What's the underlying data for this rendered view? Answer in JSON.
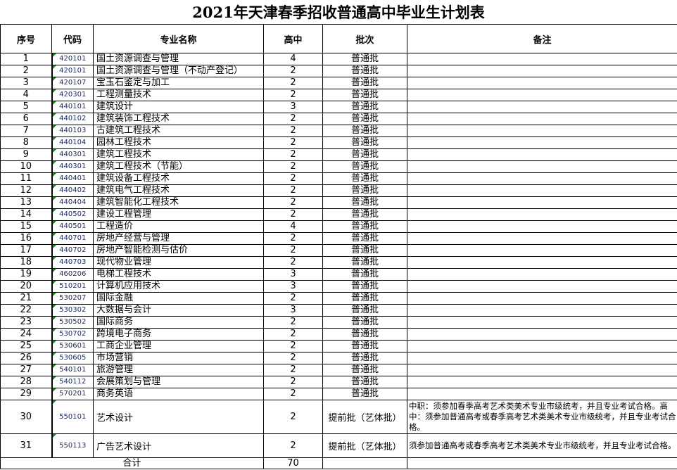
{
  "title": "2021年天津春季招收普通高中毕业生计划表",
  "headers": {
    "seq": "序号",
    "code": "代码",
    "name": "专业名称",
    "quota": "高中",
    "batch": "批次",
    "note": "备注"
  },
  "rows": [
    {
      "seq": "1",
      "code": "420101",
      "name": "国土资源调查与管理",
      "quota": "4",
      "batch": "普通批",
      "note": ""
    },
    {
      "seq": "2",
      "code": "420101",
      "name": "国土资源调查与管理（不动产登记）",
      "quota": "2",
      "batch": "普通批",
      "note": ""
    },
    {
      "seq": "3",
      "code": "420107",
      "name": "宝玉石鉴定与加工",
      "quota": "2",
      "batch": "普通批",
      "note": ""
    },
    {
      "seq": "4",
      "code": "420301",
      "name": "工程测量技术",
      "quota": "2",
      "batch": "普通批",
      "note": ""
    },
    {
      "seq": "5",
      "code": "440101",
      "name": "建筑设计",
      "quota": "3",
      "batch": "普通批",
      "note": ""
    },
    {
      "seq": "6",
      "code": "440102",
      "name": "建筑装饰工程技术",
      "quota": "2",
      "batch": "普通批",
      "note": ""
    },
    {
      "seq": "7",
      "code": "440103",
      "name": "古建筑工程技术",
      "quota": "2",
      "batch": "普通批",
      "note": ""
    },
    {
      "seq": "8",
      "code": "440104",
      "name": "园林工程技术",
      "quota": "2",
      "batch": "普通批",
      "note": ""
    },
    {
      "seq": "9",
      "code": "440301",
      "name": "建筑工程技术",
      "quota": "2",
      "batch": "普通批",
      "note": ""
    },
    {
      "seq": "10",
      "code": "440301",
      "name": "建筑工程技术（节能）",
      "quota": "2",
      "batch": "普通批",
      "note": ""
    },
    {
      "seq": "11",
      "code": "440401",
      "name": "建筑设备工程技术",
      "quota": "2",
      "batch": "普通批",
      "note": ""
    },
    {
      "seq": "12",
      "code": "440402",
      "name": "建筑电气工程技术",
      "quota": "2",
      "batch": "普通批",
      "note": ""
    },
    {
      "seq": "13",
      "code": "440404",
      "name": "建筑智能化工程技术",
      "quota": "2",
      "batch": "普通批",
      "note": ""
    },
    {
      "seq": "14",
      "code": "440502",
      "name": "建设工程管理",
      "quota": "2",
      "batch": "普通批",
      "note": ""
    },
    {
      "seq": "15",
      "code": "440501",
      "name": "工程造价",
      "quota": "4",
      "batch": "普通批",
      "note": ""
    },
    {
      "seq": "16",
      "code": "440701",
      "name": "房地产经营与管理",
      "quota": "2",
      "batch": "普通批",
      "note": ""
    },
    {
      "seq": "17",
      "code": "440702",
      "name": "房地产智能检测与估价",
      "quota": "2",
      "batch": "普通批",
      "note": ""
    },
    {
      "seq": "18",
      "code": "440703",
      "name": "现代物业管理",
      "quota": "2",
      "batch": "普通批",
      "note": ""
    },
    {
      "seq": "19",
      "code": "460206",
      "name": "电梯工程技术",
      "quota": "3",
      "batch": "普通批",
      "note": ""
    },
    {
      "seq": "20",
      "code": "510201",
      "name": "计算机应用技术",
      "quota": "3",
      "batch": "普通批",
      "note": ""
    },
    {
      "seq": "21",
      "code": "530207",
      "name": "国际金融",
      "quota": "2",
      "batch": "普通批",
      "note": ""
    },
    {
      "seq": "22",
      "code": "530302",
      "name": "大数据与会计",
      "quota": "3",
      "batch": "普通批",
      "note": ""
    },
    {
      "seq": "23",
      "code": "530502",
      "name": "国际商务",
      "quota": "2",
      "batch": "普通批",
      "note": ""
    },
    {
      "seq": "24",
      "code": "530702",
      "name": "跨境电子商务",
      "quota": "2",
      "batch": "普通批",
      "note": ""
    },
    {
      "seq": "25",
      "code": "530601",
      "name": "工商企业管理",
      "quota": "2",
      "batch": "普通批",
      "note": ""
    },
    {
      "seq": "26",
      "code": "530605",
      "name": "市场营销",
      "quota": "2",
      "batch": "普通批",
      "note": ""
    },
    {
      "seq": "27",
      "code": "540101",
      "name": "旅游管理",
      "quota": "2",
      "batch": "普通批",
      "note": ""
    },
    {
      "seq": "28",
      "code": "540112",
      "name": "会展策划与管理",
      "quota": "2",
      "batch": "普通批",
      "note": ""
    },
    {
      "seq": "29",
      "code": "570201",
      "name": "商务英语",
      "quota": "2",
      "batch": "普通批",
      "note": ""
    },
    {
      "seq": "30",
      "code": "550101",
      "name": "艺术设计",
      "quota": "2",
      "batch": "提前批（艺体批）",
      "note": "中职：须参加春季高考艺术类美术专业市级统考，并且专业考试合格。高中：须参加普通高考或春季高考艺术类美术专业市级统考，并且专业考试合格。"
    },
    {
      "seq": "31",
      "code": "550113",
      "name": "广告艺术设计",
      "quota": "2",
      "batch": "提前批（艺体批）",
      "note": "须参加普通高考或春季高考艺术类美术专业市级统考，并且专业考试合格。"
    }
  ],
  "total": {
    "label": "合计",
    "quota": "70"
  }
}
